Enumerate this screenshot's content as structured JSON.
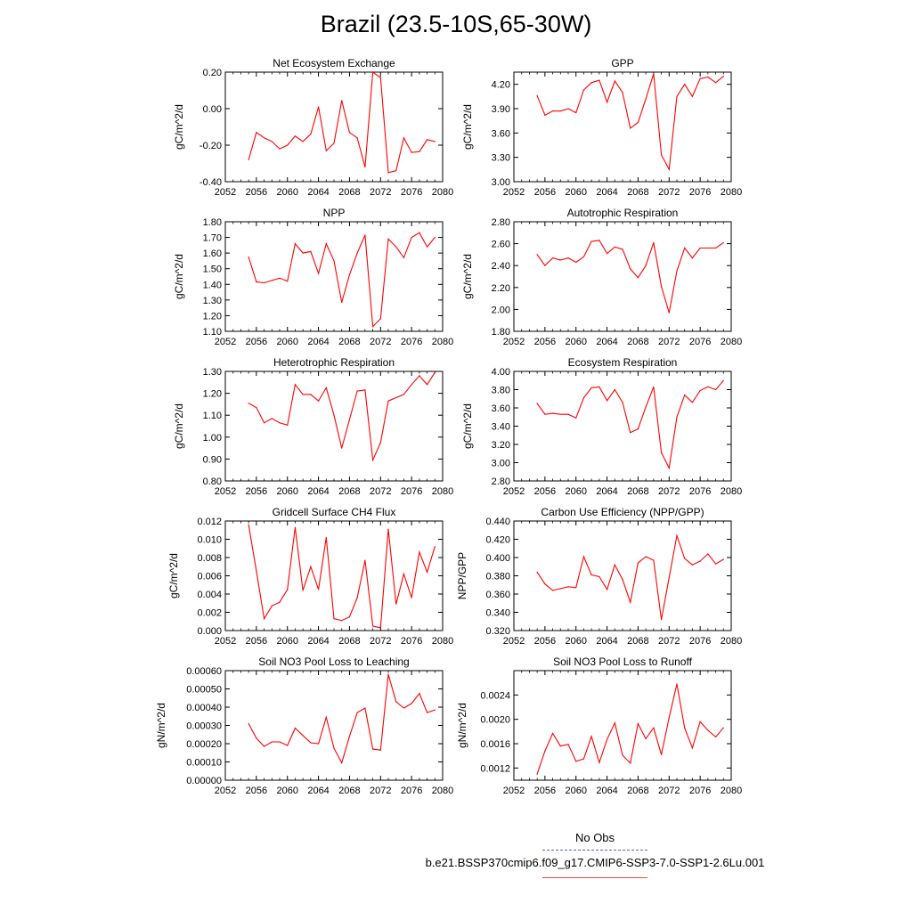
{
  "title": "Brazil (23.5-10S,65-30W)",
  "legend": {
    "entries": [
      {
        "label": "No Obs",
        "color": "#5a5adc",
        "style": "dashed"
      },
      {
        "label": "b.e21.BSSP370cmip6.f09_g17.CMIP6-SSP3-7.0-SSP1-2.6Lu.001",
        "color": "#e05050",
        "style": "solid"
      }
    ]
  },
  "line_color": "#ff0000",
  "years": [
    2055,
    2056,
    2057,
    2058,
    2059,
    2060,
    2061,
    2062,
    2063,
    2064,
    2065,
    2066,
    2067,
    2068,
    2069,
    2070,
    2071,
    2072,
    2073,
    2074,
    2075,
    2076,
    2077,
    2078,
    2079
  ],
  "chart_data": [
    {
      "type": "line",
      "title": "Net Ecosystem Exchange",
      "ylabel": "gC/m^2/d",
      "xlim": [
        2052,
        2080
      ],
      "xticks": [
        2052,
        2056,
        2060,
        2064,
        2068,
        2072,
        2076,
        2080
      ],
      "ylim": [
        -0.4,
        0.2
      ],
      "yticks": [
        -0.4,
        -0.2,
        0.0,
        0.2
      ],
      "ydecimals": 2,
      "values": [
        -0.28,
        -0.13,
        -0.16,
        -0.18,
        -0.22,
        -0.2,
        -0.15,
        -0.18,
        -0.14,
        0.01,
        -0.23,
        -0.19,
        0.045,
        -0.13,
        -0.16,
        -0.32,
        0.2,
        0.17,
        -0.35,
        -0.34,
        -0.16,
        -0.24,
        -0.235,
        -0.17,
        -0.18
      ]
    },
    {
      "type": "line",
      "title": "GPP",
      "ylabel": "gC/m^2/d",
      "xlim": [
        2052,
        2080
      ],
      "xticks": [
        2052,
        2056,
        2060,
        2064,
        2068,
        2072,
        2076,
        2080
      ],
      "ylim": [
        3.0,
        4.35
      ],
      "yticks": [
        3.0,
        3.3,
        3.6,
        3.9,
        4.2
      ],
      "ydecimals": 2,
      "values": [
        4.06,
        3.82,
        3.87,
        3.87,
        3.9,
        3.85,
        4.13,
        4.22,
        4.25,
        3.98,
        4.24,
        4.1,
        3.66,
        3.73,
        4.02,
        4.33,
        3.33,
        3.15,
        4.05,
        4.2,
        4.05,
        4.27,
        4.29,
        4.22,
        4.3
      ]
    },
    {
      "type": "line",
      "title": "NPP",
      "ylabel": "gC/m^2/d",
      "xlim": [
        2052,
        2080
      ],
      "xticks": [
        2052,
        2056,
        2060,
        2064,
        2068,
        2072,
        2076,
        2080
      ],
      "ylim": [
        1.1,
        1.8
      ],
      "yticks": [
        1.1,
        1.2,
        1.3,
        1.4,
        1.5,
        1.6,
        1.7,
        1.8
      ],
      "ydecimals": 2,
      "values": [
        1.575,
        1.415,
        1.41,
        1.425,
        1.44,
        1.42,
        1.66,
        1.6,
        1.61,
        1.47,
        1.66,
        1.55,
        1.285,
        1.46,
        1.6,
        1.715,
        1.13,
        1.18,
        1.69,
        1.64,
        1.57,
        1.7,
        1.73,
        1.64,
        1.7
      ]
    },
    {
      "type": "line",
      "title": "Autotrophic Respiration",
      "ylabel": "gC/m^2/d",
      "xlim": [
        2052,
        2080
      ],
      "xticks": [
        2052,
        2056,
        2060,
        2064,
        2068,
        2072,
        2076,
        2080
      ],
      "ylim": [
        1.8,
        2.8
      ],
      "yticks": [
        1.8,
        2.0,
        2.2,
        2.4,
        2.6,
        2.8
      ],
      "ydecimals": 2,
      "values": [
        2.5,
        2.4,
        2.47,
        2.45,
        2.47,
        2.43,
        2.48,
        2.62,
        2.63,
        2.51,
        2.57,
        2.55,
        2.37,
        2.29,
        2.4,
        2.61,
        2.21,
        1.97,
        2.35,
        2.56,
        2.47,
        2.56,
        2.56,
        2.56,
        2.61
      ]
    },
    {
      "type": "line",
      "title": "Heterotrophic Respiration",
      "ylabel": "gC/m^2/d",
      "xlim": [
        2052,
        2080
      ],
      "xticks": [
        2052,
        2056,
        2060,
        2064,
        2068,
        2072,
        2076,
        2080
      ],
      "ylim": [
        0.8,
        1.3
      ],
      "yticks": [
        0.8,
        0.9,
        1.0,
        1.1,
        1.2,
        1.3
      ],
      "ydecimals": 2,
      "values": [
        1.155,
        1.135,
        1.065,
        1.085,
        1.065,
        1.055,
        1.24,
        1.195,
        1.195,
        1.165,
        1.225,
        1.1,
        0.95,
        1.08,
        1.21,
        1.215,
        0.895,
        0.975,
        1.165,
        1.18,
        1.195,
        1.24,
        1.28,
        1.24,
        1.295
      ]
    },
    {
      "type": "line",
      "title": "Ecosystem Respiration",
      "ylabel": "gC/m^2/d",
      "xlim": [
        2052,
        2080
      ],
      "xticks": [
        2052,
        2056,
        2060,
        2064,
        2068,
        2072,
        2076,
        2080
      ],
      "ylim": [
        2.8,
        4.0
      ],
      "yticks": [
        2.8,
        3.0,
        3.2,
        3.4,
        3.6,
        3.8,
        4.0
      ],
      "ydecimals": 2,
      "values": [
        3.65,
        3.53,
        3.54,
        3.53,
        3.53,
        3.49,
        3.71,
        3.82,
        3.83,
        3.68,
        3.8,
        3.66,
        3.33,
        3.37,
        3.61,
        3.83,
        3.11,
        2.94,
        3.5,
        3.74,
        3.66,
        3.79,
        3.83,
        3.8,
        3.9
      ]
    },
    {
      "type": "line",
      "title": "Gridcell Surface CH4 Flux",
      "ylabel": "gC/m^2/d",
      "xlim": [
        2052,
        2080
      ],
      "xticks": [
        2052,
        2056,
        2060,
        2064,
        2068,
        2072,
        2076,
        2080
      ],
      "ylim": [
        0.0,
        0.012
      ],
      "yticks": [
        0.0,
        0.002,
        0.004,
        0.006,
        0.008,
        0.01,
        0.012
      ],
      "ydecimals": 3,
      "values": [
        0.0116,
        0.0065,
        0.0013,
        0.0027,
        0.0031,
        0.0045,
        0.0113,
        0.0044,
        0.007,
        0.0045,
        0.0102,
        0.0013,
        0.0011,
        0.0015,
        0.0036,
        0.0077,
        0.0005,
        0.0003,
        0.0111,
        0.0029,
        0.0062,
        0.0036,
        0.0086,
        0.0064,
        0.0092
      ]
    },
    {
      "type": "line",
      "title": "Carbon Use Efficiency (NPP/GPP)",
      "ylabel": "NPP/GPP",
      "xlim": [
        2052,
        2080
      ],
      "xticks": [
        2052,
        2056,
        2060,
        2064,
        2068,
        2072,
        2076,
        2080
      ],
      "ylim": [
        0.32,
        0.44
      ],
      "yticks": [
        0.32,
        0.34,
        0.36,
        0.38,
        0.4,
        0.42,
        0.44
      ],
      "ydecimals": 3,
      "values": [
        0.384,
        0.371,
        0.364,
        0.366,
        0.368,
        0.367,
        0.401,
        0.381,
        0.379,
        0.365,
        0.392,
        0.376,
        0.351,
        0.394,
        0.401,
        0.397,
        0.332,
        0.378,
        0.424,
        0.399,
        0.392,
        0.396,
        0.404,
        0.393,
        0.398
      ]
    },
    {
      "type": "line",
      "title": "Soil NO3 Pool Loss to Leaching",
      "ylabel": "gN/m^2/d",
      "xlim": [
        2052,
        2080
      ],
      "xticks": [
        2052,
        2056,
        2060,
        2064,
        2068,
        2072,
        2076,
        2080
      ],
      "ylim": [
        0.0,
        0.0006
      ],
      "yticks": [
        0.0,
        0.0001,
        0.0002,
        0.0003,
        0.0004,
        0.0005,
        0.0006
      ],
      "ydecimals": 5,
      "values": [
        0.00031,
        0.00023,
        0.000185,
        0.00021,
        0.00021,
        0.00019,
        0.000285,
        0.000245,
        0.000205,
        0.0002,
        0.000345,
        0.000175,
        9.5e-05,
        0.00024,
        0.00037,
        0.000395,
        0.00017,
        0.000165,
        0.00058,
        0.00043,
        0.000395,
        0.00042,
        0.000475,
        0.00037,
        0.000385
      ]
    },
    {
      "type": "line",
      "title": "Soil NO3 Pool Loss to Runoff",
      "ylabel": "gN/m^2/d",
      "xlim": [
        2052,
        2080
      ],
      "xticks": [
        2052,
        2056,
        2060,
        2064,
        2068,
        2072,
        2076,
        2080
      ],
      "ylim": [
        0.001,
        0.0028
      ],
      "yticks": [
        0.0012,
        0.0016,
        0.002,
        0.0024
      ],
      "ydecimals": 4,
      "values": [
        0.0011,
        0.00148,
        0.00177,
        0.00156,
        0.00159,
        0.00131,
        0.00135,
        0.00172,
        0.00129,
        0.00167,
        0.00194,
        0.00141,
        0.00128,
        0.00193,
        0.00168,
        0.00186,
        0.00142,
        0.00203,
        0.00258,
        0.00186,
        0.00153,
        0.00196,
        0.00182,
        0.00171,
        0.00186
      ]
    }
  ]
}
